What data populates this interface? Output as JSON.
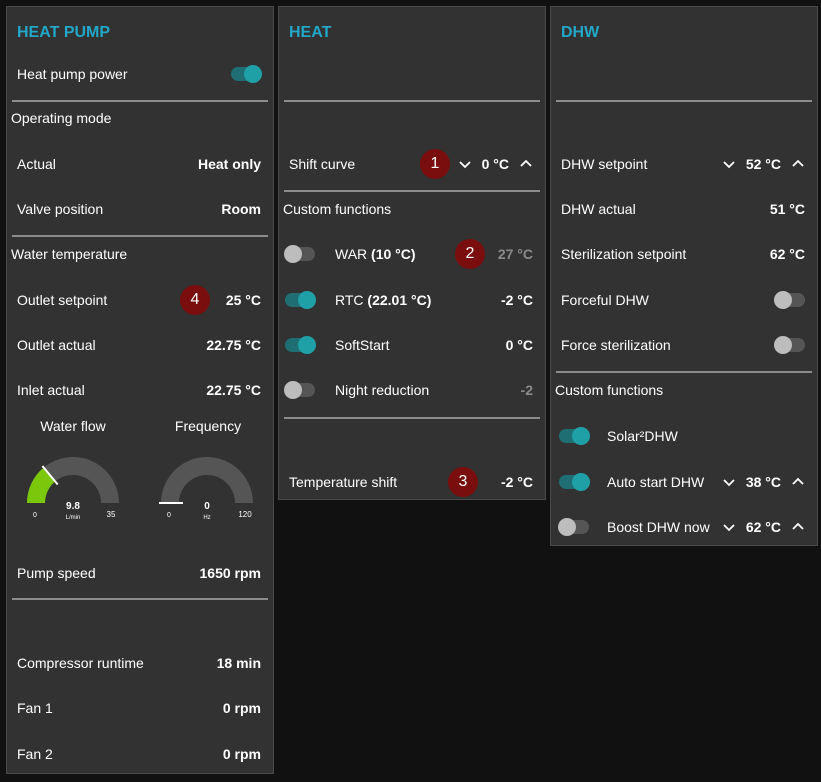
{
  "heat_pump": {
    "title": "HEAT PUMP",
    "power_label": "Heat pump power",
    "power_on": true,
    "operating_mode_section": "Operating mode",
    "actual_label": "Actual",
    "actual_value": "Heat only",
    "valve_label": "Valve position",
    "valve_value": "Room",
    "water_temp_section": "Water temperature",
    "outlet_setpoint_label": "Outlet setpoint",
    "outlet_setpoint_value": "25 °C",
    "outlet_actual_label": "Outlet actual",
    "outlet_actual_value": "22.75 °C",
    "inlet_actual_label": "Inlet actual",
    "inlet_actual_value": "22.75 °C",
    "water_flow_gauge": {
      "label": "Water flow",
      "value": 9.8,
      "value_text": "9.8",
      "unit": "L/min",
      "min": 0,
      "max": 35,
      "min_text": "0",
      "max_text": "35",
      "color": "#7ac70c"
    },
    "frequency_gauge": {
      "label": "Frequency",
      "value": 0,
      "value_text": "0",
      "unit": "Hz",
      "min": 0,
      "max": 120,
      "min_text": "0",
      "max_text": "120",
      "color": "#7ac70c"
    },
    "pump_speed_label": "Pump speed",
    "pump_speed_value": "1650 rpm",
    "compressor_label": "Compressor runtime",
    "compressor_value": "18 min",
    "fan1_label": "Fan 1",
    "fan1_value": "0 rpm",
    "fan2_label": "Fan 2",
    "fan2_value": "0 rpm"
  },
  "heat": {
    "title": "HEAT",
    "shift_curve_label": "Shift curve",
    "shift_curve_value": "0 °C",
    "custom_functions_section": "Custom functions",
    "war_label_plain": "WAR ",
    "war_label_bold": "(10 °C)",
    "war_on": false,
    "war_value": "27 °C",
    "rtc_label_plain": "RTC ",
    "rtc_label_bold": "(22.01 °C)",
    "rtc_on": true,
    "rtc_value": "-2 °C",
    "softstart_label": "SoftStart",
    "softstart_on": true,
    "softstart_value": "0 °C",
    "night_label": "Night reduction",
    "night_on": false,
    "night_value": "-2",
    "temp_shift_label": "Temperature shift",
    "temp_shift_value": "-2 °C"
  },
  "dhw": {
    "title": "DHW",
    "setpoint_label": "DHW setpoint",
    "setpoint_value": "52 °C",
    "actual_label": "DHW actual",
    "actual_value": "51 °C",
    "steril_setpoint_label": "Sterilization setpoint",
    "steril_setpoint_value": "62 °C",
    "forceful_label": "Forceful DHW",
    "forceful_on": false,
    "force_steril_label": "Force sterilization",
    "force_steril_on": false,
    "custom_functions_section": "Custom functions",
    "solar_label": "Solar²DHW",
    "solar_on": true,
    "auto_start_label": "Auto start DHW",
    "auto_start_on": true,
    "auto_start_value": "38 °C",
    "boost_label": "Boost DHW now",
    "boost_on": false,
    "boost_value": "62 °C"
  },
  "badges": {
    "b1": "1",
    "b2": "2",
    "b3": "3",
    "b4": "4"
  },
  "icons": {
    "down": "chevron-down-icon",
    "up": "chevron-up-icon"
  },
  "colors": {
    "accent": "#22a7c9",
    "toggle_on": "#1fa0a6",
    "badge": "#7a0e0e",
    "gauge_fill": "#7ac70c"
  }
}
